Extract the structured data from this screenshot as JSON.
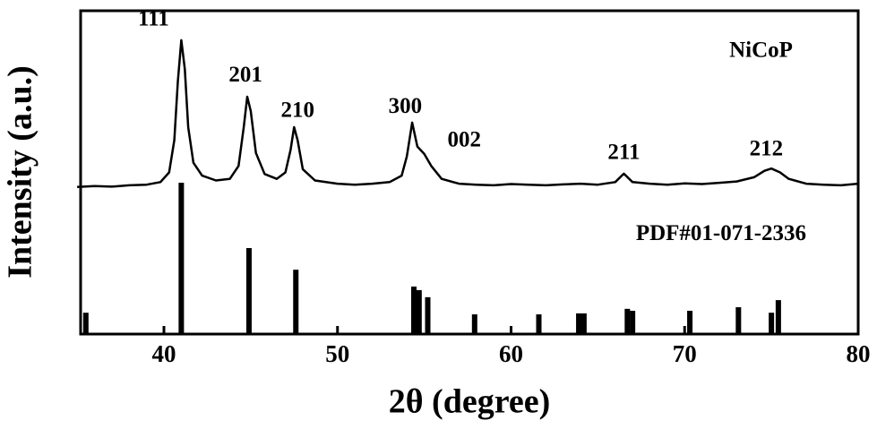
{
  "chart_data": {
    "type": "xrd",
    "xlabel": "2θ (degree)",
    "ylabel": "Intensity (a.u.)",
    "xlim": [
      35.2,
      80
    ],
    "ylim": [
      0,
      100
    ],
    "xticks": [
      40,
      50,
      60,
      70,
      80
    ],
    "series": [
      {
        "type": "line",
        "color": "#000000",
        "x": [
          35,
          36,
          37,
          38,
          39,
          39.8,
          40.3,
          40.6,
          40.8,
          41.0,
          41.2,
          41.4,
          41.7,
          42.2,
          43,
          43.8,
          44.3,
          44.6,
          44.8,
          45.0,
          45.3,
          45.8,
          46.5,
          47.0,
          47.3,
          47.5,
          47.7,
          48.0,
          48.7,
          50,
          51,
          52,
          53,
          53.7,
          54.0,
          54.3,
          54.6,
          55.0,
          55.4,
          56,
          57,
          58,
          59,
          60,
          61,
          62,
          63,
          64,
          65,
          66,
          66.5,
          67,
          68,
          69,
          70,
          71,
          72,
          73,
          74,
          74.6,
          75,
          75.5,
          76,
          77,
          78,
          79,
          80
        ],
        "values": [
          45.5,
          45.8,
          45.6,
          46,
          46.2,
          47,
          50,
          60,
          78,
          90.9,
          82,
          64,
          53,
          49,
          47.5,
          48,
          52,
          64,
          73.4,
          69,
          56,
          49.5,
          48,
          50,
          57,
          64,
          60,
          51,
          47.5,
          46.5,
          46.2,
          46.5,
          47,
          49,
          55,
          65.4,
          58,
          55.7,
          52,
          48,
          46.5,
          46.2,
          46,
          46.4,
          46.2,
          46,
          46.3,
          46.5,
          46.2,
          47,
          49.6,
          47,
          46.5,
          46.2,
          46.6,
          46.4,
          46.8,
          47.2,
          48.5,
          50.5,
          51.2,
          50,
          48,
          46.5,
          46.2,
          46,
          46.5
        ]
      },
      {
        "type": "stick",
        "color": "#000000",
        "x": [
          35.5,
          41.0,
          44.9,
          47.6,
          54.4,
          54.7,
          55.2,
          57.9,
          61.6,
          63.9,
          64.2,
          66.7,
          67.0,
          70.3,
          73.1,
          75.0,
          75.4
        ],
        "values": [
          6.6,
          46.8,
          26.6,
          19.9,
          14.7,
          13.6,
          11.4,
          6.1,
          6.1,
          6.4,
          6.4,
          7.8,
          7.2,
          7.2,
          8.3,
          6.6,
          10.5
        ]
      }
    ],
    "annotations": [
      {
        "text": "111",
        "x": 39.4,
        "y": 97
      },
      {
        "text": "201",
        "x": 44.7,
        "y": 79.7
      },
      {
        "text": "210",
        "x": 47.7,
        "y": 68.7
      },
      {
        "text": "300",
        "x": 53.9,
        "y": 70
      },
      {
        "text": "002",
        "x": 57.3,
        "y": 59.6
      },
      {
        "text": "211",
        "x": 66.5,
        "y": 55.7
      },
      {
        "text": "212",
        "x": 74.7,
        "y": 56.8
      },
      {
        "text": "NiCoP",
        "x": 74.4,
        "y": 87.3
      },
      {
        "text": "PDF#01-071-2336",
        "x": 72.1,
        "y": 30.7
      }
    ]
  }
}
